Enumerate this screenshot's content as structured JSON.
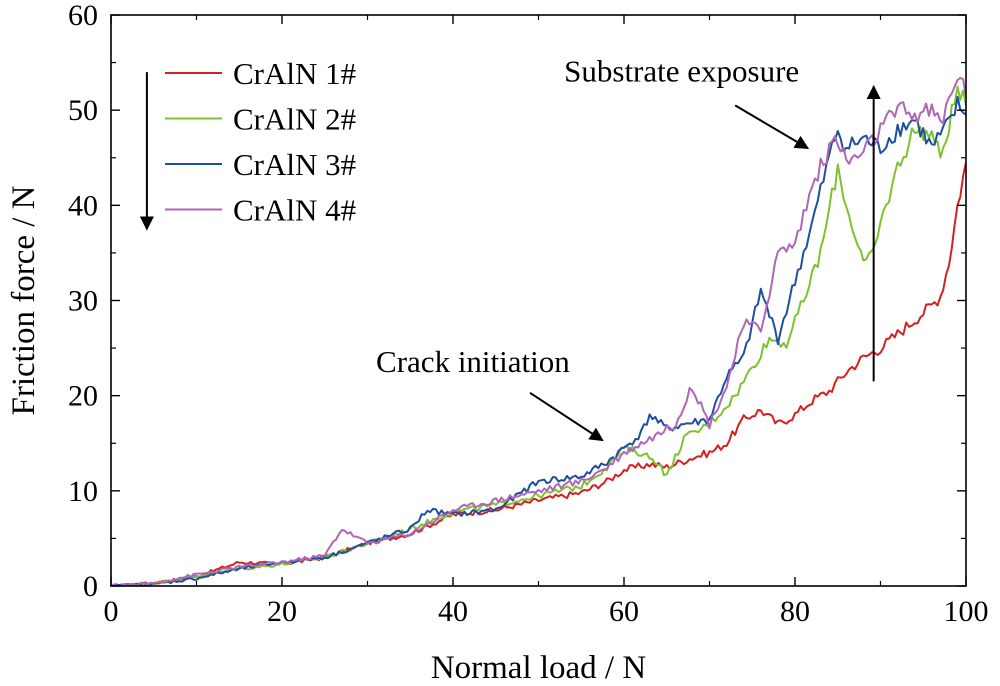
{
  "chart_data": {
    "type": "line",
    "xlabel": "Normal load / N",
    "ylabel": "Friction force / N",
    "xlim": [
      0,
      100
    ],
    "ylim": [
      0,
      60
    ],
    "xticks": [
      "0",
      "20",
      "40",
      "60",
      "80",
      "100"
    ],
    "yticks": [
      "0",
      "10",
      "20",
      "30",
      "40",
      "50",
      "60"
    ],
    "grid": false,
    "legend_position": "top-left",
    "series": [
      {
        "name": "CrAlN 1#",
        "color": "#d62020",
        "x": [
          0,
          5,
          10,
          15,
          20,
          25,
          30,
          35,
          40,
          45,
          50,
          55,
          58,
          60,
          63,
          65,
          68,
          70,
          72,
          74,
          76,
          78,
          80,
          82,
          84,
          86,
          88,
          90,
          92,
          94,
          96,
          97,
          98,
          99,
          100
        ],
        "y": [
          0,
          0.3,
          1.0,
          2.5,
          2.3,
          3.0,
          4.5,
          5.5,
          7.5,
          8.0,
          9.0,
          9.8,
          11.0,
          12.2,
          12.8,
          12.5,
          13.5,
          14.0,
          15.0,
          17.5,
          18.5,
          17.0,
          18.0,
          19.5,
          20.5,
          22.5,
          24.0,
          25.0,
          26.5,
          28.0,
          29.5,
          30.5,
          34.0,
          40.0,
          44.5
        ]
      },
      {
        "name": "CrAlN 2#",
        "color": "#7dc22f",
        "x": [
          0,
          5,
          10,
          15,
          20,
          25,
          30,
          35,
          40,
          45,
          50,
          55,
          58,
          60,
          62,
          64,
          65,
          67,
          70,
          73,
          75,
          77,
          79,
          81,
          83,
          85,
          86,
          87,
          88,
          89,
          90,
          92,
          94,
          96,
          97,
          98,
          99,
          100
        ],
        "y": [
          0,
          0.3,
          1.0,
          1.8,
          2.3,
          3.0,
          4.5,
          6.0,
          7.8,
          8.5,
          9.5,
          10.5,
          12.5,
          14.5,
          14.0,
          13.0,
          11.5,
          15.5,
          17.0,
          20.0,
          23.0,
          26.0,
          25.5,
          30.0,
          35.0,
          44.0,
          40.0,
          37.0,
          34.0,
          34.5,
          38.0,
          44.0,
          48.0,
          47.5,
          45.0,
          48.5,
          52.0,
          50.5
        ]
      },
      {
        "name": "CrAlN 3#",
        "color": "#1f4fa0",
        "x": [
          0,
          5,
          10,
          15,
          20,
          25,
          30,
          35,
          37,
          40,
          45,
          50,
          55,
          58,
          60,
          62,
          63,
          65,
          67,
          70,
          72,
          74,
          76,
          78,
          80,
          82,
          84,
          85,
          86,
          88,
          90,
          92,
          94,
          96,
          98,
          99,
          100
        ],
        "y": [
          0,
          0.2,
          0.8,
          1.8,
          2.5,
          3.0,
          4.5,
          6.0,
          8.0,
          7.5,
          8.0,
          11.0,
          11.5,
          13.0,
          14.5,
          16.0,
          18.0,
          16.5,
          17.0,
          17.5,
          22.0,
          24.0,
          31.0,
          26.0,
          32.0,
          38.0,
          45.0,
          48.0,
          46.0,
          47.0,
          46.0,
          48.0,
          49.0,
          46.0,
          48.5,
          50.5,
          49.5
        ]
      },
      {
        "name": "CrAlN 4#",
        "color": "#b066b8",
        "x": [
          0,
          5,
          10,
          15,
          20,
          25,
          27,
          30,
          35,
          40,
          45,
          50,
          55,
          58,
          60,
          62,
          64,
          66,
          68,
          70,
          72,
          74,
          76,
          78,
          80,
          82,
          84,
          85,
          86,
          88,
          90,
          92,
          94,
          96,
          97,
          98,
          99,
          100
        ],
        "y": [
          0,
          0.3,
          1.2,
          2.0,
          2.5,
          3.2,
          6.0,
          4.5,
          5.5,
          8.0,
          9.0,
          10.0,
          11.0,
          12.5,
          14.0,
          15.0,
          16.0,
          17.0,
          21.0,
          17.0,
          21.0,
          27.5,
          27.0,
          35.0,
          36.0,
          42.0,
          46.0,
          47.0,
          44.5,
          45.5,
          48.0,
          50.0,
          49.5,
          50.0,
          48.5,
          51.0,
          54.0,
          51.5
        ]
      }
    ],
    "annotations": [
      {
        "text": "Crack initiation",
        "label_at": [
          31,
          22.5
        ],
        "arrow_from": [
          49,
          20.3
        ],
        "arrow_to": [
          57.5,
          15.3
        ]
      },
      {
        "text": "Substrate exposure",
        "label_at": [
          53,
          53
        ],
        "arrow_from": [
          73,
          50.5
        ],
        "arrow_to": [
          81.5,
          46
        ]
      }
    ],
    "trend_arrows": [
      {
        "direction": "down",
        "x": 4.2,
        "y_from": 54,
        "y_to": 37.5
      },
      {
        "direction": "up",
        "x": 89.2,
        "y_from": 21.5,
        "y_to": 52.5
      }
    ]
  }
}
